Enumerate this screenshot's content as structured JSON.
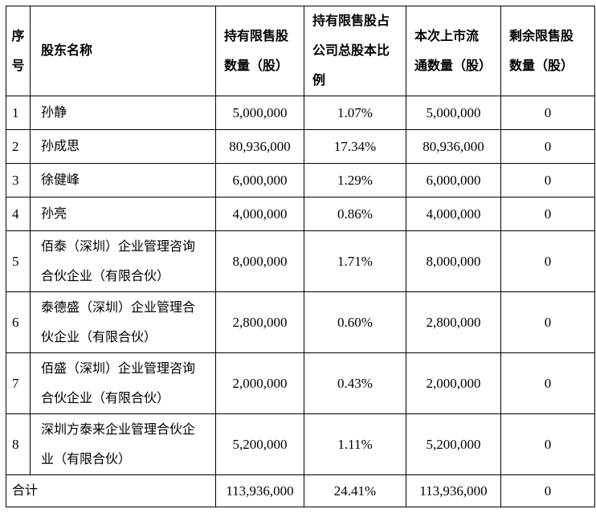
{
  "page": {
    "background_color": "#ffffff",
    "grid_color": "#000000",
    "text_color": "#000000"
  },
  "table": {
    "columns": [
      {
        "key": "no",
        "label": "序\n号"
      },
      {
        "key": "name",
        "label": "股东名称"
      },
      {
        "key": "restricted",
        "label": "持有限售股\n数量（股）"
      },
      {
        "key": "ratio",
        "label": "持有限售股占\n公司总股本比\n例"
      },
      {
        "key": "listed",
        "label": "本次上市流\n通数量（股）"
      },
      {
        "key": "remaining",
        "label": "剩余限售股\n数量（股）"
      }
    ],
    "rows": [
      {
        "no": "1",
        "name": "孙静",
        "restricted": "5,000,000",
        "ratio": "1.07%",
        "listed": "5,000,000",
        "remaining": "0"
      },
      {
        "no": "2",
        "name": "孙成思",
        "restricted": "80,936,000",
        "ratio": "17.34%",
        "listed": "80,936,000",
        "remaining": "0"
      },
      {
        "no": "3",
        "name": "徐健峰",
        "restricted": "6,000,000",
        "ratio": "1.29%",
        "listed": "6,000,000",
        "remaining": "0"
      },
      {
        "no": "4",
        "name": "孙亮",
        "restricted": "4,000,000",
        "ratio": "0.86%",
        "listed": "4,000,000",
        "remaining": "0"
      },
      {
        "no": "5",
        "name": "佰泰（深圳）企业管理咨询\n合伙企业（有限合伙）",
        "restricted": "8,000,000",
        "ratio": "1.71%",
        "listed": "8,000,000",
        "remaining": "0"
      },
      {
        "no": "6",
        "name": "泰德盛（深圳）企业管理合\n伙企业（有限合伙）",
        "restricted": "2,800,000",
        "ratio": "0.60%",
        "listed": "2,800,000",
        "remaining": "0"
      },
      {
        "no": "7",
        "name": "佰盛（深圳）企业管理咨询\n合伙企业（有限合伙）",
        "restricted": "2,000,000",
        "ratio": "0.43%",
        "listed": "2,000,000",
        "remaining": "0"
      },
      {
        "no": "8",
        "name": "深圳方泰来企业管理合伙企\n业（有限合伙）",
        "restricted": "5,200,000",
        "ratio": "1.11%",
        "listed": "5,200,000",
        "remaining": "0"
      }
    ],
    "total_row": {
      "label": "合计",
      "restricted": "113,936,000",
      "ratio": "24.41%",
      "listed": "113,936,000",
      "remaining": "0"
    }
  }
}
